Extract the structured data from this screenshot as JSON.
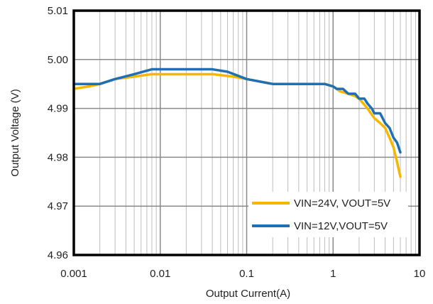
{
  "chart_data": {
    "type": "line",
    "title": "",
    "xlabel": "Output Current(A)",
    "ylabel": "Output  Voltage (V)",
    "xscale": "log",
    "xlim": [
      0.001,
      10
    ],
    "ylim": [
      4.96,
      5.01
    ],
    "x_tick_labels": [
      "0.001",
      "0.01",
      "0.1",
      "1",
      "10"
    ],
    "y_tick_labels": [
      "4.96",
      "4.97",
      "4.98",
      "4.99",
      "5.00",
      "5.01"
    ],
    "grid": true,
    "legend_position": "bottom-right",
    "series": [
      {
        "name": "VIN=24V, VOUT=5V",
        "color": "#F5B800",
        "points": [
          [
            0.001,
            4.994
          ],
          [
            0.0015,
            4.9945
          ],
          [
            0.002,
            4.995
          ],
          [
            0.003,
            4.996
          ],
          [
            0.005,
            4.9965
          ],
          [
            0.008,
            4.997
          ],
          [
            0.02,
            4.997
          ],
          [
            0.04,
            4.997
          ],
          [
            0.07,
            4.9965
          ],
          [
            0.1,
            4.996
          ],
          [
            0.2,
            4.995
          ],
          [
            0.3,
            4.995
          ],
          [
            0.5,
            4.995
          ],
          [
            0.8,
            4.995
          ],
          [
            1.0,
            4.9945
          ],
          [
            1.2,
            4.9935
          ],
          [
            1.5,
            4.993
          ],
          [
            1.8,
            4.9925
          ],
          [
            2.0,
            4.992
          ],
          [
            2.5,
            4.99
          ],
          [
            3.0,
            4.988
          ],
          [
            3.5,
            4.987
          ],
          [
            4.0,
            4.986
          ],
          [
            4.5,
            4.984
          ],
          [
            5.0,
            4.982
          ],
          [
            5.5,
            4.979
          ],
          [
            6.0,
            4.976
          ]
        ]
      },
      {
        "name": "VIN=12V,VOUT=5V",
        "color": "#1F6FB4",
        "points": [
          [
            0.001,
            4.995
          ],
          [
            0.0015,
            4.995
          ],
          [
            0.002,
            4.995
          ],
          [
            0.003,
            4.996
          ],
          [
            0.005,
            4.997
          ],
          [
            0.008,
            4.998
          ],
          [
            0.02,
            4.998
          ],
          [
            0.04,
            4.998
          ],
          [
            0.06,
            4.9975
          ],
          [
            0.1,
            4.996
          ],
          [
            0.2,
            4.995
          ],
          [
            0.3,
            4.995
          ],
          [
            0.5,
            4.995
          ],
          [
            0.8,
            4.995
          ],
          [
            1.0,
            4.9945
          ],
          [
            1.1,
            4.994
          ],
          [
            1.3,
            4.994
          ],
          [
            1.5,
            4.993
          ],
          [
            1.8,
            4.993
          ],
          [
            2.0,
            4.992
          ],
          [
            2.3,
            4.992
          ],
          [
            2.5,
            4.991
          ],
          [
            2.8,
            4.99
          ],
          [
            3.0,
            4.989
          ],
          [
            3.5,
            4.989
          ],
          [
            4.0,
            4.987
          ],
          [
            4.5,
            4.986
          ],
          [
            5.0,
            4.984
          ],
          [
            5.5,
            4.983
          ],
          [
            6.0,
            4.981
          ]
        ]
      }
    ]
  }
}
